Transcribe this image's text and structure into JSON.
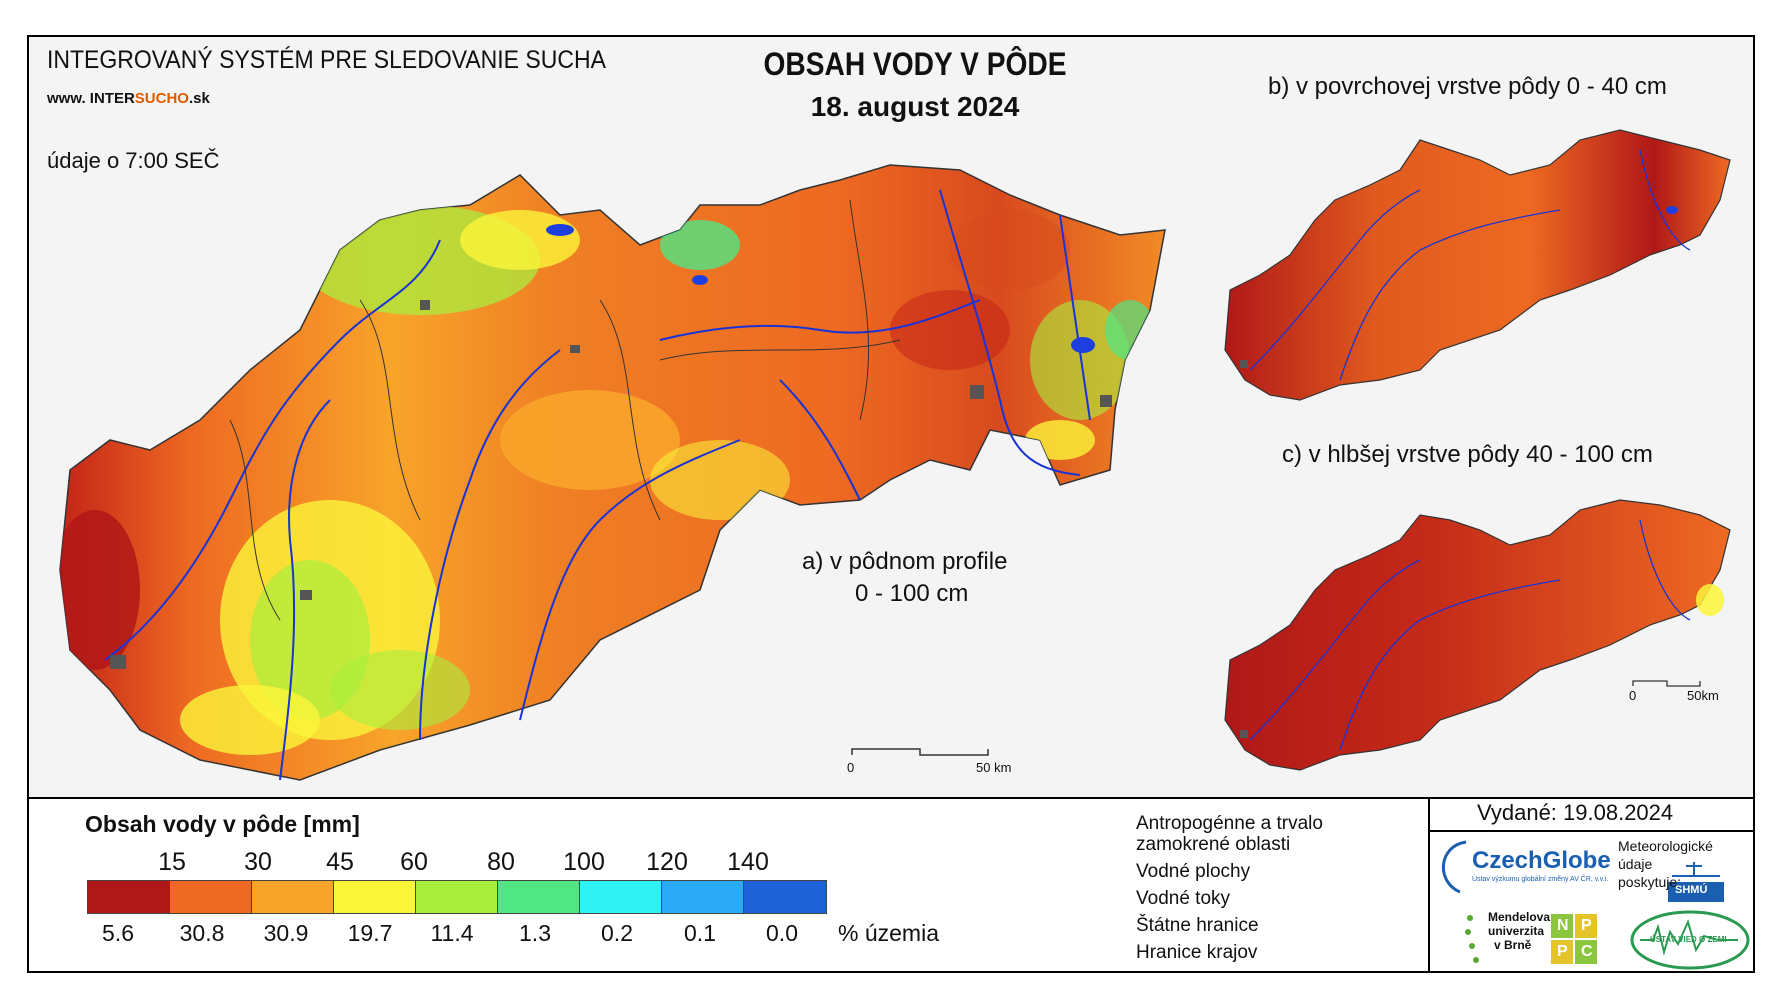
{
  "header": {
    "system_title": "INTEGROVANÝ SYSTÉM PRE SLEDOVANIE SUCHA",
    "website_prefix": "www. INTER",
    "website_highlight": "SUCHO",
    "website_suffix": ".sk",
    "time_note": "údaje o 7:00 SEČ",
    "main_title": "OBSAH VODY V PÔDE",
    "date": "18. august 2024"
  },
  "maps": {
    "a_label_line1": "a) v pôdnom profile",
    "a_label_line2": "0 - 100 cm",
    "b_label": "b) v povrchovej vrstve pôdy 0 - 40 cm",
    "c_label": "c) v hlbšej vrstve pôdy 40 - 100 cm",
    "scale_main_start": "0",
    "scale_main_end": "50 km",
    "scale_small_start": "0",
    "scale_small_end": "50km"
  },
  "legend": {
    "title": "Obsah vody v pôde  [mm]",
    "thresholds": [
      "15",
      "30",
      "45",
      "60",
      "80",
      "100",
      "120",
      "140"
    ],
    "colors": [
      "#b01818",
      "#ee6a22",
      "#f8a42a",
      "#fbf53a",
      "#a9ee3d",
      "#4fe683",
      "#2ff2f5",
      "#2aaaf7",
      "#1d62d6"
    ],
    "percentages": [
      "5.6",
      "30.8",
      "30.9",
      "19.7",
      "11.4",
      "1.3",
      "0.2",
      "0.1",
      "0.0"
    ],
    "percent_unit": "% územia"
  },
  "symbol_legend": {
    "anthropogenic_line1": "Antropogénne a trvalo",
    "anthropogenic_line2": "zamokrené oblasti",
    "water_bodies": "Vodné plochy",
    "water_streams": "Vodné toky",
    "state_borders": "Štátne hranice",
    "region_borders": "Hranice krajov"
  },
  "footer": {
    "issued": "Vydané: 19.08.2024",
    "czechglobe": "CzechGlobe",
    "czechglobe_sub": "Ústav výzkumu globální změny AV ČR, v.v.i.",
    "meteo_line1": "Meteorologické",
    "meteo_line2": "údaje",
    "meteo_line3": "poskytuje:",
    "shmu": "SHMÚ",
    "mendel_line1": "Mendelova",
    "mendel_line2": "univerzita",
    "mendel_line3": "v Brně",
    "nppc_n": "N",
    "nppc_p1": "P",
    "nppc_p2": "P",
    "nppc_c": "C",
    "uvz": "ÚSTAV VIED O ZEMI"
  }
}
